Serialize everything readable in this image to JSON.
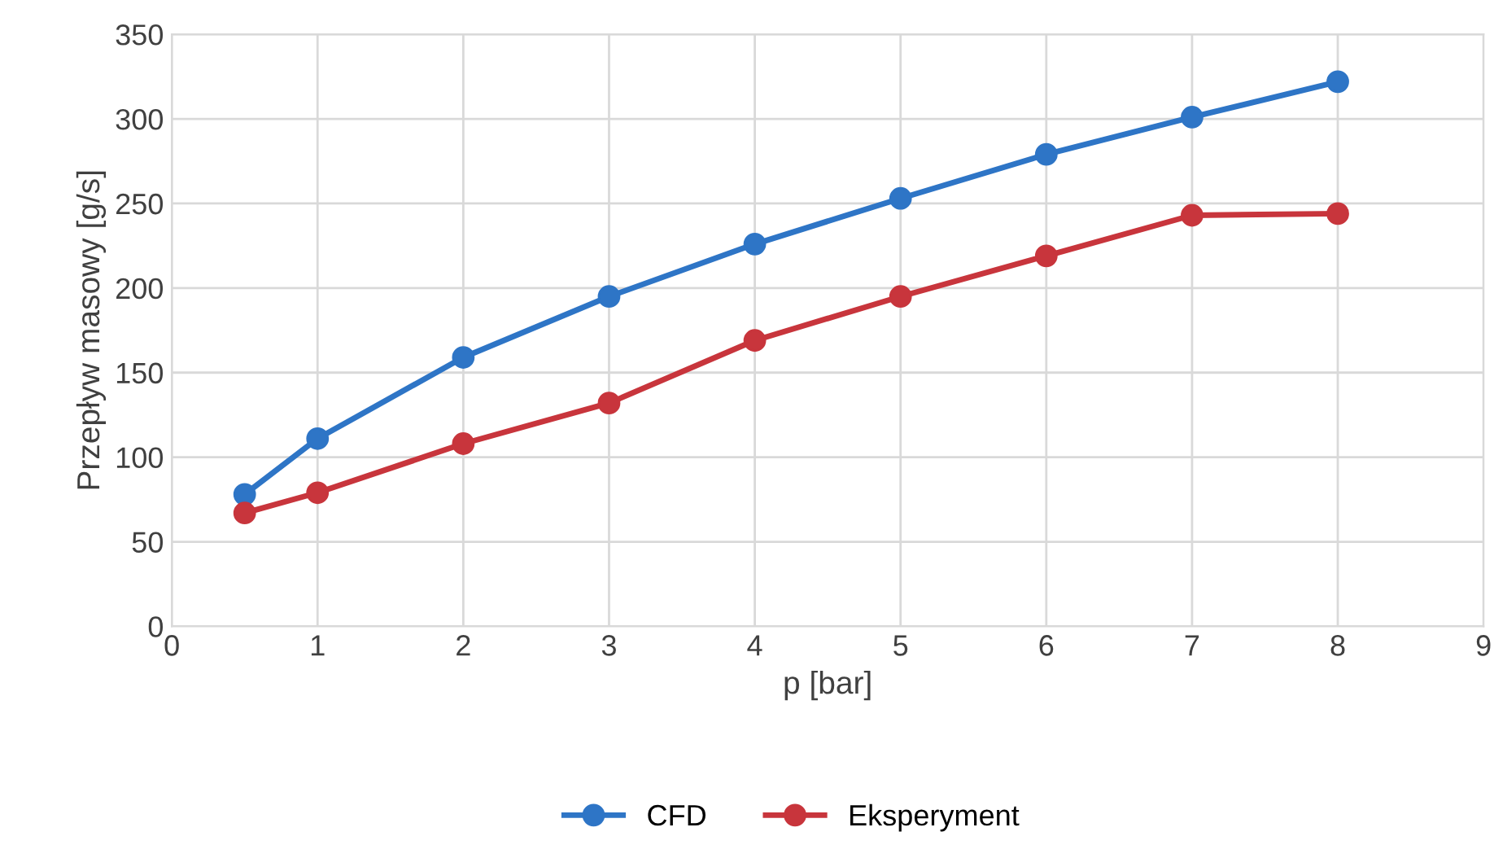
{
  "chart_data": {
    "type": "line",
    "xlabel": "p [bar]",
    "ylabel": "Przepływ masowy [g/s]",
    "x": [
      0.5,
      1,
      2,
      3,
      4,
      5,
      6,
      7,
      8
    ],
    "series": [
      {
        "name": "CFD",
        "color": "#2e75c6",
        "values": [
          78,
          111,
          159,
          195,
          226,
          253,
          279,
          301,
          322
        ]
      },
      {
        "name": "Eksperyment",
        "color": "#c8353c",
        "values": [
          67,
          79,
          108,
          132,
          169,
          195,
          219,
          243,
          244
        ]
      }
    ],
    "xlim": [
      0,
      9
    ],
    "xticks": [
      0,
      1,
      2,
      3,
      4,
      5,
      6,
      7,
      8,
      9
    ],
    "ylim": [
      0,
      350
    ],
    "yticks": [
      0,
      50,
      100,
      150,
      200,
      250,
      300,
      350
    ],
    "grid": true,
    "legend": "bottom",
    "marker": "circle",
    "line_style": "solid"
  }
}
